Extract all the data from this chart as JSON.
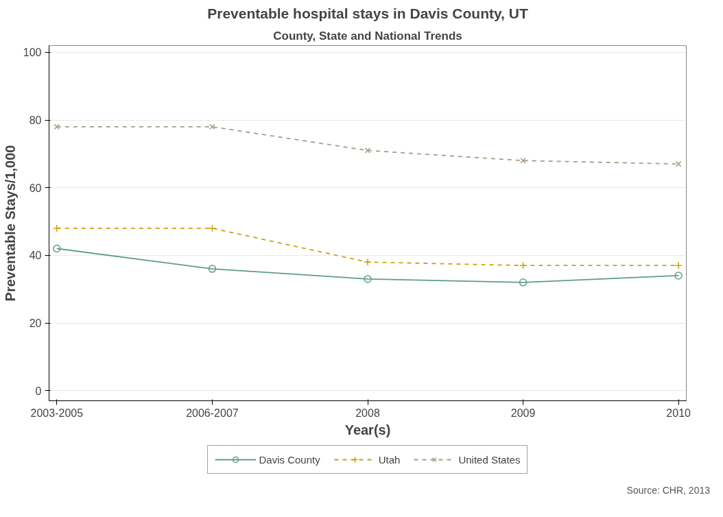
{
  "chart_data": {
    "type": "line",
    "title": "Preventable hospital stays in Davis County, UT",
    "subtitle": "County, State and National Trends",
    "xlabel": "Year(s)",
    "ylabel": "Preventable Stays/1,000",
    "categories": [
      "2003-2005",
      "2006-2007",
      "2008",
      "2009",
      "2010"
    ],
    "series": [
      {
        "name": "Davis County",
        "color": "#5e9e82",
        "values": [
          42,
          36,
          33,
          32,
          34
        ],
        "marker": "circle",
        "line_style": "solid"
      },
      {
        "name": "Utah",
        "color": "#c9a20a",
        "values": [
          48,
          48,
          38,
          37,
          37
        ],
        "marker": "cross",
        "line_style": "dashed"
      },
      {
        "name": "United States",
        "color": "#a89c84",
        "values": [
          78,
          78,
          71,
          68,
          67
        ],
        "marker": "x",
        "line_style": "dashed"
      }
    ],
    "ylim": [
      -3,
      102
    ],
    "yticks": [
      0,
      20,
      40,
      60,
      80,
      100
    ],
    "grid": "y",
    "legend": "bottom",
    "annotations": [
      "Source: CHR, 2013"
    ]
  }
}
